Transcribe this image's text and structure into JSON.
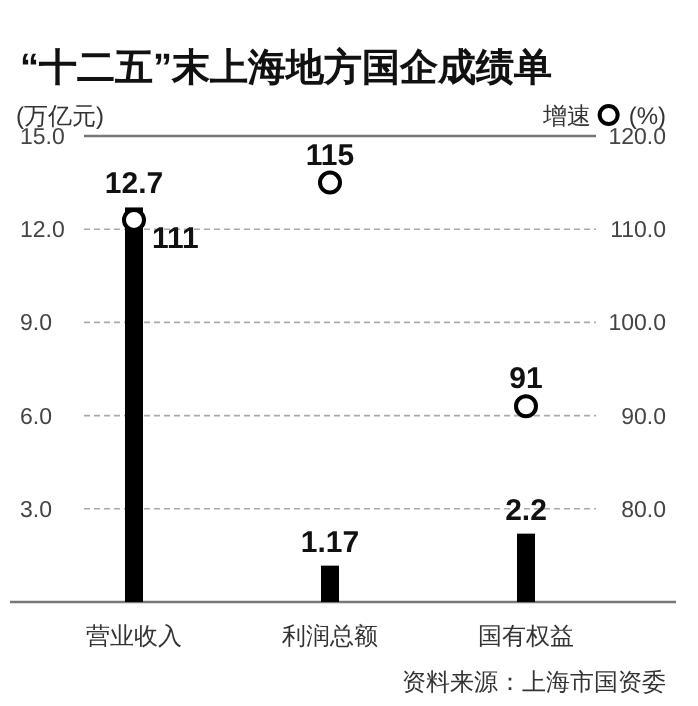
{
  "chart_data": {
    "type": "bar",
    "title": "“十二五”末上海地方国企成绩单",
    "ylabel": "(万亿元)",
    "y2label": "(%)",
    "categories": [
      "营业收入",
      "利润总额",
      "国有权益"
    ],
    "series": [
      {
        "color": "#000000",
        "values": [
          12.7,
          1.17,
          2.2
        ]
      },
      {
        "type": "scatter",
        "name": "增速",
        "axis": "y2",
        "color": "#000000",
        "values": [
          111,
          115,
          91
        ]
      }
    ],
    "ylim": [
      0,
      15
    ],
    "yticks": [
      {
        "value": 3,
        "label": "3.0"
      },
      {
        "value": 6,
        "label": "6.0"
      },
      {
        "value": 9,
        "label": "9.0"
      },
      {
        "value": 12,
        "label": "12.0"
      },
      {
        "value": 15,
        "label": "15.0"
      }
    ],
    "y2lim": [
      70,
      120
    ],
    "y2ticks": [
      {
        "value": 80,
        "label": "80.0"
      },
      {
        "value": 90,
        "label": "90.0"
      },
      {
        "value": 100,
        "label": "100.0"
      },
      {
        "value": 110,
        "label": "110.0"
      },
      {
        "value": 120,
        "label": "120.0"
      }
    ],
    "grid": "y",
    "legend": "top right",
    "marker": "circle",
    "data_labels": true,
    "annotations": [
      "资料来源：上海市国资委"
    ]
  }
}
